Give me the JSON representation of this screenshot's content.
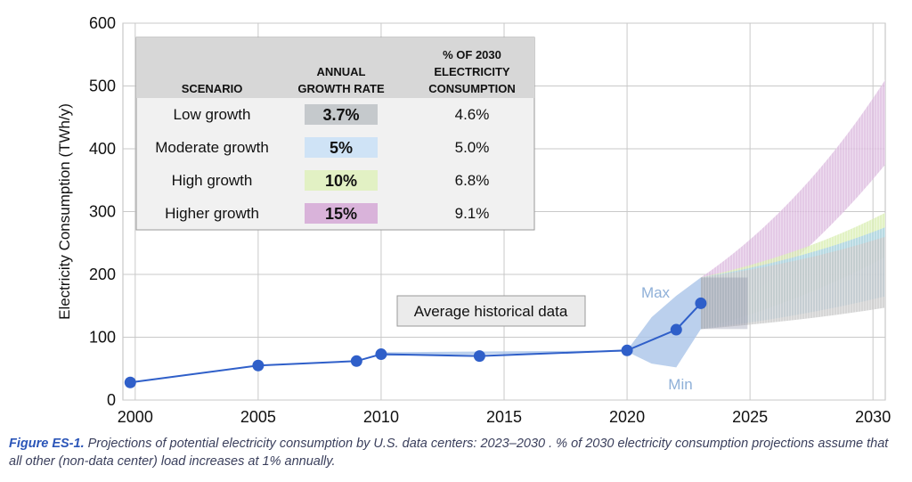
{
  "chart_data": {
    "type": "line",
    "ylabel": "Electricity Consumption (TWh/y)",
    "xlabel": "",
    "xlim": [
      1999.5,
      2030.5
    ],
    "ylim": [
      0,
      600
    ],
    "x_ticks": [
      "2000",
      "2005",
      "2010",
      "2015",
      "2020",
      "2025",
      "2030"
    ],
    "y_ticks": [
      "0",
      "100",
      "200",
      "300",
      "400",
      "500",
      "600"
    ],
    "grid": true,
    "historical": {
      "x": [
        1999.8,
        2005,
        2009,
        2010,
        2014,
        2020,
        2022,
        2023
      ],
      "y": [
        28,
        55,
        62,
        73,
        70,
        79,
        112,
        154
      ]
    },
    "historical_range": {
      "x": [
        2010,
        2020,
        2021,
        2022,
        2023
      ],
      "max": [
        76,
        79,
        132,
        166,
        195
      ],
      "min": [
        70,
        77,
        58,
        52,
        113
      ]
    },
    "scenarios": [
      {
        "name": "Low growth",
        "rate_label": "3.7%",
        "pct_2030": "4.6%",
        "color": "#c8c8c8",
        "x": [
          2023,
          2030.5
        ],
        "low": [
          113,
          147
        ],
        "high": [
          195,
          260
        ]
      },
      {
        "name": "Moderate growth",
        "rate_label": "5%",
        "pct_2030": "5.0%",
        "color": "#a9d2ec",
        "x": [
          2023,
          2030.5
        ],
        "low": [
          113,
          165
        ],
        "high": [
          195,
          275
        ]
      },
      {
        "name": "High growth",
        "rate_label": "10%",
        "pct_2030": "6.8%",
        "color": "#d8edb0",
        "x": [
          2023,
          2030.5
        ],
        "low": [
          113,
          228
        ],
        "high": [
          195,
          298
        ]
      },
      {
        "name": "Higher growth",
        "rate_label": "15%",
        "pct_2030": "9.1%",
        "color": "#dbb8de",
        "x": [
          2023,
          2030.5
        ],
        "low": [
          113,
          375
        ],
        "high": [
          195,
          510
        ]
      }
    ],
    "table": {
      "headers": [
        "SCENARIO",
        "ANNUAL GROWTH RATE",
        "% OF 2030 ELECTRICITY CONSUMPTION"
      ],
      "swatch_colors": [
        "#c5c9cc",
        "#cfe3f6",
        "#e2f1c4",
        "#d9b3da"
      ]
    },
    "annotations": {
      "average": "Average historical data",
      "max": "Max",
      "min": "Min"
    }
  },
  "caption": {
    "label": "Figure ES-1.",
    "text": " Projections of potential electricity consumption by U.S. data centers: 2023–2030 . % of 2030 electricity consumption projections assume that all other (non-data center) load increases at 1% annually."
  }
}
